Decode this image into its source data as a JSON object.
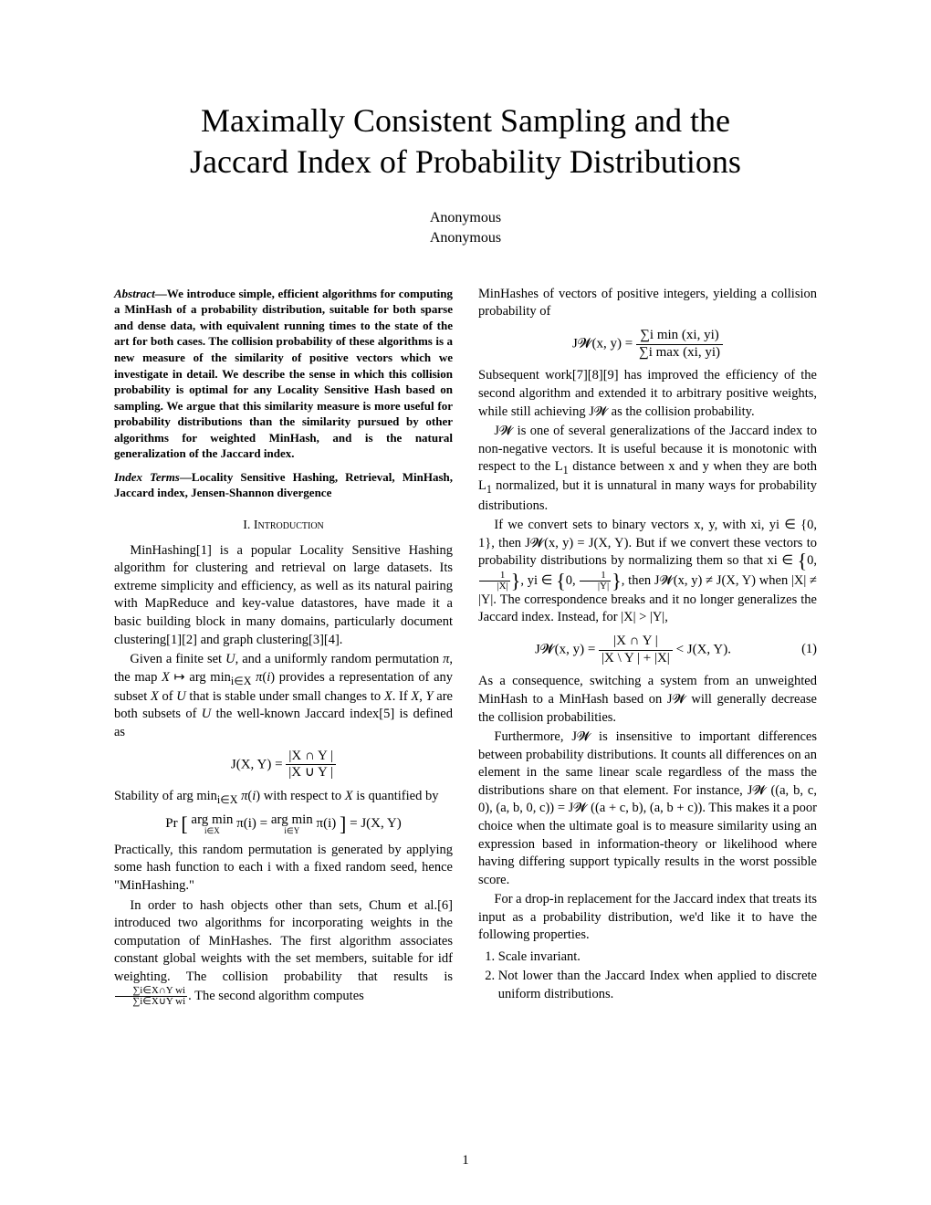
{
  "title_line1": "Maximally Consistent Sampling and the",
  "title_line2": "Jaccard Index of Probability Distributions",
  "author1": "Anonymous",
  "author2": "Anonymous",
  "abstract_label": "Abstract",
  "abstract_text": "—We introduce simple, efficient algorithms for computing a MinHash of a probability distribution, suitable for both sparse and dense data, with equivalent running times to the state of the art for both cases. The collision probability of these algorithms is a new measure of the similarity of positive vectors which we investigate in detail. We describe the sense in which this collision probability is optimal for any Locality Sensitive Hash based on sampling. We argue that this similarity measure is more useful for probability distributions than the similarity pursued by other algorithms for weighted MinHash, and is the natural generalization of the Jaccard index.",
  "index_label": "Index Terms",
  "index_text": "—Locality Sensitive Hashing, Retrieval, MinHash, Jaccard index, Jensen-Shannon divergence",
  "sec1_heading": "I.  Introduction",
  "l_p1": "MinHashing[1] is a popular Locality Sensitive Hashing algorithm for clustering and retrieval on large datasets. Its extreme simplicity and efficiency, as well as its natural pairing with MapReduce and key-value datastores, have made it a basic building block in many domains, particularly document clustering[1][2] and graph clustering[3][4].",
  "l_p2a": "Given a finite set ",
  "l_p2b": ", and a uniformly random permutation ",
  "l_p2c": ", the map ",
  "l_p2d": " provides a representation of any subset ",
  "l_p2e": " of ",
  "l_p2f": " that is stable under small changes to ",
  "l_p2g": ". If ",
  "l_p2h": " are both subsets of ",
  "l_p2i": " the well-known Jaccard index[5] is defined as",
  "l_eq1_lhs": "J(X, Y) = ",
  "l_eq1_num": "|X ∩ Y |",
  "l_eq1_den": "|X ∪ Y |",
  "l_p3a": "Stability of ",
  "l_p3b": " with respect to ",
  "l_p3c": " is quantified by",
  "l_eq2_pr": "Pr",
  "l_eq2_inner_a": "arg min",
  "l_eq2_inner_b": "π(i) = ",
  "l_eq2_inner_c": "arg min",
  "l_eq2_inner_d": "π(i)",
  "l_eq2_sub1": "i∈X",
  "l_eq2_sub2": "i∈Y",
  "l_eq2_rhs": " = J(X, Y)",
  "l_p4": "Practically, this random permutation is generated by applying some hash function to each i with a fixed random seed, hence \"MinHashing.\"",
  "l_p5a": "In order to hash objects other than sets, Chum et al.[6] introduced two algorithms for incorporating weights in the computation of MinHashes. The first algorithm associates constant global weights with the set members, suitable for idf weighting. The collision probability that results is ",
  "l_p5_num": "∑i∈X∩Y wi",
  "l_p5_den": "∑i∈X∪Y wi",
  "l_p5b": ". The second algorithm computes",
  "r_p1": "MinHashes of vectors of positive integers, yielding a collision probability of",
  "r_eq1_lhs": "J𝓦(x, y) = ",
  "r_eq1_num": "∑i min (xi, yi)",
  "r_eq1_den": "∑i max (xi, yi)",
  "r_p2": "Subsequent work[7][8][9] has improved the efficiency of the second algorithm and extended it to arbitrary positive weights, while still achieving J𝓦 as the collision probability.",
  "r_p3a": "J𝓦 is one of several generalizations of the Jaccard index to non-negative vectors. It is useful because it is monotonic with respect to the L",
  "r_p3b": " distance between x and y when they are both L",
  "r_p3c": " normalized, but it is unnatural in many ways for probability distributions.",
  "r_p4a": "If we convert sets to binary vectors x, y, with xi, yi ∈ {0, 1}, then J𝓦(x, y) = J(X, Y). But if we convert these vectors to probability distributions by normalizing them so that xi ∈ ",
  "r_p4_set1a": "0, ",
  "r_p4_set1_num": "1",
  "r_p4_set1_den": "|X|",
  "r_p4b": ",  yi ∈ ",
  "r_p4_set2a": "0, ",
  "r_p4_set2_num": "1",
  "r_p4_set2_den": "|Y|",
  "r_p4c": ", then J𝓦(x, y) ≠ J(X, Y) when |X| ≠ |Y|. The correspondence breaks and it no longer generalizes the Jaccard index. Instead, for |X| > |Y|,",
  "r_eq2_lhs": "J𝓦(x, y) = ",
  "r_eq2_num": "|X ∩ Y |",
  "r_eq2_den": "|X \\ Y | + |X|",
  "r_eq2_rhs": " < J(X, Y).",
  "r_eq2_num_label": "(1)",
  "r_p5": "As a consequence, switching a system from an unweighted MinHash to a MinHash based on J𝓦 will generally decrease the collision probabilities.",
  "r_p6": "Furthermore, J𝓦 is insensitive to important differences between probability distributions. It counts all differences on an element in the same linear scale regardless of the mass the distributions share on that element. For instance, J𝓦 ((a, b, c, 0), (a, b, 0, c)) = J𝓦 ((a + c, b), (a, b + c)). This makes it a poor choice when the ultimate goal is to measure similarity using an expression based in information-theory or likelihood where having differing support typically results in the worst possible score.",
  "r_p7": "For a drop-in replacement for the Jaccard index that treats its input as a probability distribution, we'd like it to have the following properties.",
  "r_li1": "Scale invariant.",
  "r_li2": "Not lower than the Jaccard Index when applied to discrete uniform distributions.",
  "page_number": "1"
}
